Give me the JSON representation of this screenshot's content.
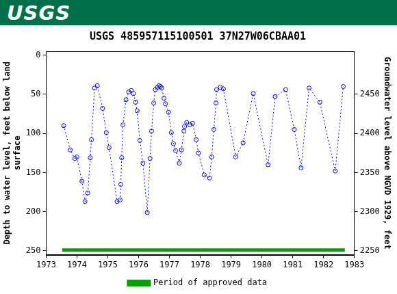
{
  "chart_data": {
    "type": "scatter",
    "header": "USGS",
    "title": "USGS 485957115100501 37N27W06CBAA01",
    "y_label": [
      "Depth to water level, feet below land",
      "surface"
    ],
    "y2_label": "Groundwater level above NGVD 1929, feet",
    "xlim": [
      1973,
      1983
    ],
    "xticks": [
      1973,
      1974,
      1975,
      1976,
      1977,
      1978,
      1979,
      1980,
      1981,
      1982,
      1983
    ],
    "ylim": [
      255,
      -5
    ],
    "yticks": [
      0,
      50,
      100,
      150,
      200,
      250
    ],
    "y2lim": [
      2245,
      2505
    ],
    "y2ticks": [
      2250,
      2300,
      2350,
      2400,
      2450
    ],
    "grid": false,
    "legend": "bottom",
    "series": [
      {
        "color": "#0000ff",
        "marker": "circle_open",
        "line_style": "dotted",
        "x": [
          1973.57,
          1973.78,
          1973.93,
          1974.0,
          1974.16,
          1974.26,
          1974.35,
          1974.43,
          1974.47,
          1974.57,
          1974.66,
          1974.83,
          1974.95,
          1975.04,
          1975.3,
          1975.4,
          1975.42,
          1975.45,
          1975.49,
          1975.59,
          1975.68,
          1975.76,
          1975.83,
          1975.9,
          1975.95,
          1976.04,
          1976.14,
          1976.28,
          1976.37,
          1976.42,
          1976.49,
          1976.54,
          1976.61,
          1976.66,
          1976.71,
          1976.75,
          1976.82,
          1976.87,
          1976.97,
          1977.06,
          1977.13,
          1977.2,
          1977.32,
          1977.39,
          1977.47,
          1977.49,
          1977.56,
          1977.66,
          1977.75,
          1977.87,
          1977.94,
          1978.13,
          1978.3,
          1978.37,
          1978.44,
          1978.51,
          1978.53,
          1978.65,
          1978.75,
          1979.15,
          1979.39,
          1979.72,
          1980.2,
          1980.43,
          1980.77,
          1981.05,
          1981.27,
          1981.53,
          1981.88,
          1982.38,
          1982.64
        ],
        "values": [
          90,
          121,
          132,
          130,
          161,
          187,
          176,
          131,
          108,
          42,
          39,
          68,
          99,
          118,
          187,
          185,
          165,
          131,
          89,
          57,
          47,
          45,
          49,
          60,
          71,
          109,
          138,
          201,
          132,
          97,
          61,
          44,
          41,
          39,
          40,
          42,
          55,
          62,
          73,
          99,
          113,
          122,
          138,
          121,
          97,
          91,
          86,
          89,
          87,
          108,
          125,
          153,
          157,
          130,
          95,
          61,
          44,
          41,
          43,
          130,
          112,
          49,
          140,
          53,
          44,
          95,
          144,
          42,
          60,
          148,
          40
        ]
      },
      {
        "name": "Period of approved data",
        "type": "line",
        "color": "#00a000",
        "line_style": "solid",
        "x": [
          1973.52,
          1982.69
        ],
        "values": [
          249,
          249
        ]
      }
    ]
  }
}
